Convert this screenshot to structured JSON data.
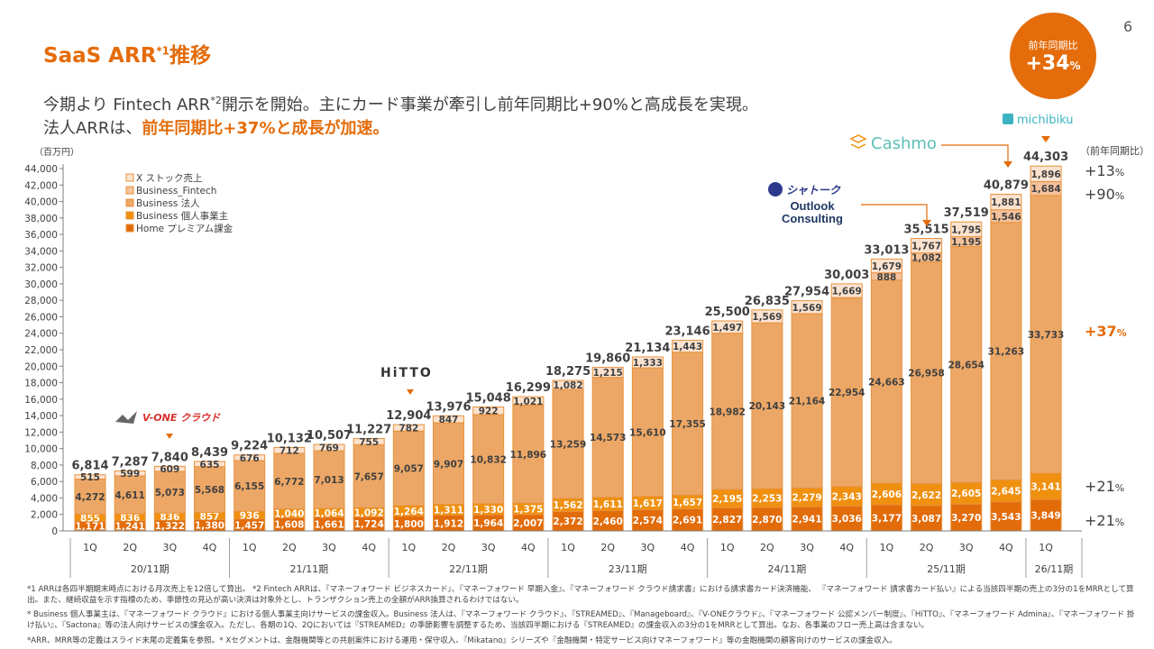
{
  "page_number": "6",
  "title": "SaaS ARR",
  "title_sup": "*1",
  "title_suffix": "推移",
  "subtitle1_a": "今期より Fintech ARR",
  "subtitle1_sup": "*2",
  "subtitle1_b": "開示を開始。主にカード事業が牽引し前年同期比+90%と高成長を実現。",
  "subtitle2_a": "法人ARRは、",
  "subtitle2_hl": "前年同期比+37%と成長が加速。",
  "badge": {
    "label": "前年同期比",
    "value": "+34",
    "unit": "%"
  },
  "logos": {
    "vone": "V-ONE クラウド",
    "hitto": "HiTTO",
    "shatoku": "シャトーク",
    "outlook": "Outlook Consulting",
    "cashmo": "Cashmo",
    "michibiku": "michibiku"
  },
  "yoy": {
    "header": "（前年同期比）",
    "items": [
      {
        "series": "X ストック売上",
        "value": "+13",
        "unit": "%"
      },
      {
        "series": "Business_Fintech",
        "value": "+90",
        "unit": "%"
      },
      {
        "series": "Business 法人",
        "value": "+37",
        "unit": "%"
      },
      {
        "series": "Business 個人事業主",
        "value": "+21",
        "unit": "%"
      },
      {
        "series": "Home プレミアム課金",
        "value": "+21",
        "unit": "%"
      }
    ]
  },
  "chart_data": {
    "type": "bar",
    "stacked": true,
    "ylabel": "（百万円）",
    "ylim": [
      0,
      44000
    ],
    "ytick_step": 2000,
    "legend_position": "top-left",
    "categories": [
      "1Q",
      "2Q",
      "3Q",
      "4Q",
      "1Q",
      "2Q",
      "3Q",
      "4Q",
      "1Q",
      "2Q",
      "3Q",
      "4Q",
      "1Q",
      "2Q",
      "3Q",
      "4Q",
      "1Q",
      "2Q",
      "3Q",
      "4Q",
      "1Q",
      "2Q",
      "3Q",
      "4Q",
      "1Q"
    ],
    "groups": [
      {
        "label": "20/11期",
        "count": 4
      },
      {
        "label": "21/11期",
        "count": 4
      },
      {
        "label": "22/11期",
        "count": 4
      },
      {
        "label": "23/11期",
        "count": 4
      },
      {
        "label": "24/11期",
        "count": 4
      },
      {
        "label": "25/11期",
        "count": 4
      },
      {
        "label": "26/11期",
        "count": 1
      }
    ],
    "totals": [
      6814,
      7287,
      7840,
      8439,
      9224,
      10132,
      10507,
      11227,
      12904,
      13976,
      15048,
      16299,
      18275,
      19860,
      21134,
      23146,
      25500,
      26835,
      27954,
      30003,
      33013,
      35515,
      37519,
      40879,
      44303
    ],
    "series": [
      {
        "name": "Home プレミアム課金",
        "color": "#e26b0a",
        "values": [
          1171,
          1241,
          1322,
          1380,
          1457,
          1608,
          1661,
          1724,
          1800,
          1912,
          1964,
          2007,
          2372,
          2460,
          2574,
          2691,
          2827,
          2870,
          2941,
          3036,
          3177,
          3087,
          3270,
          3543,
          3849
        ]
      },
      {
        "name": "Business 個人事業主",
        "color": "#f0900f",
        "values": [
          855,
          836,
          836,
          857,
          936,
          1040,
          1064,
          1092,
          1264,
          1311,
          1330,
          1375,
          1562,
          1611,
          1617,
          1657,
          2195,
          2253,
          2279,
          2343,
          2606,
          2622,
          2605,
          2645,
          3141
        ]
      },
      {
        "name": "Business 法人",
        "color": "#eca766",
        "values": [
          4272,
          4611,
          5073,
          5568,
          6155,
          6772,
          7013,
          7657,
          9057,
          9907,
          10832,
          11896,
          13259,
          14573,
          15610,
          17355,
          18982,
          20143,
          21164,
          22954,
          24663,
          26958,
          28654,
          31263,
          33733
        ]
      },
      {
        "name": "Business_Fintech",
        "color": "#f4c29c",
        "values": [
          null,
          null,
          null,
          null,
          null,
          null,
          null,
          null,
          null,
          null,
          null,
          null,
          null,
          null,
          null,
          null,
          null,
          null,
          null,
          null,
          888,
          1082,
          1195,
          1546,
          1684
        ]
      },
      {
        "name": "X ストック売上",
        "color": "#fce3d0",
        "values": [
          515,
          599,
          609,
          635,
          676,
          712,
          769,
          755,
          782,
          847,
          922,
          1021,
          1082,
          1215,
          1333,
          1443,
          1497,
          1569,
          1569,
          1669,
          1679,
          1767,
          1795,
          1881,
          1896
        ]
      }
    ]
  },
  "footnotes": [
    "*1 ARRは各四半期期末時点における月次売上を12倍して算出。 *2 Fintech ARRは、『マネーフォワード ビジネスカード』、『マネーフォワード 早期入金』、『マネーフォワード クラウド請求書』における請求書カード決済機能、 『マネーフォワード 請求書カード払い』による当該四半期の売上の3分の1をMRRとして算出。また、継続収益を示す指標のため、季節性の見込が高い決済は対象外とし、トランザクション売上の全額がARR換算されるわけではない。",
    "* Business 個人事業主は、『マネーフォワード クラウド』における個人事業主向けサービスの課金収入。Business 法人は、『マネーフォワード クラウド』、『STREAMED』、『Manageboard』、『V-ONEクラウド』、『マネーフォワード 公認メンバー制度』、『HiTTO』、『マネーフォワード Admina』、『マネーフォワード 掛け払い』、『Sactona』等の法人向けサービスの課金収入。ただし、各期の1Q、2Qにおいては『STREAMED』の季節影響を調整するため、当該四半期における『STREAMED』の課金収入の3分の1をMRRとして算出。なお、各事業のフロー売上高は含まない。",
    "*ARR、MRR等の定義はスライド末尾の定義集を参照。* Xセグメントは、金融機関等との共創案件における運用・保守収入、『Mikatano』シリーズや『金融機関・特定サービス向けマネーフォワード』等の金融機関の顧客向けのサービスの課金収入。"
  ]
}
